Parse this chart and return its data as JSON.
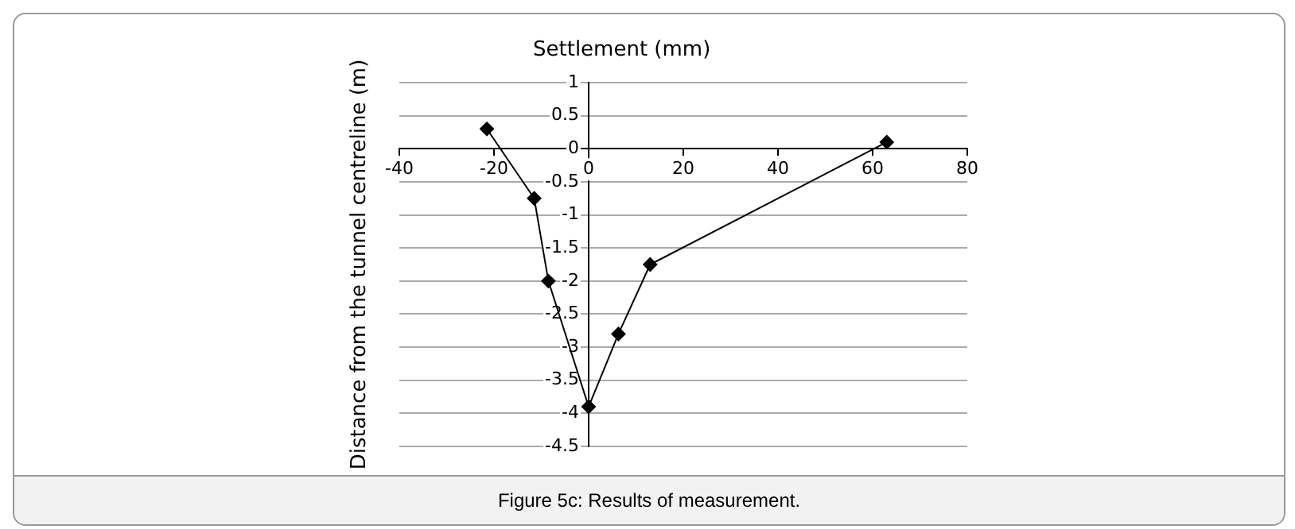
{
  "chart_data": {
    "type": "line",
    "xlabel": "Settlement (mm)",
    "ylabel": "Distance from the tunnel centreline (m)",
    "annotations": [
      "Figure 5c: Results of measurement."
    ],
    "series": [
      {
        "color": "#000000",
        "x": [
          -21.5,
          -11.5,
          -8.5,
          0,
          6.3,
          13,
          63
        ],
        "values": [
          0.3,
          -0.75,
          -2,
          -3.9,
          -2.8,
          -1.75,
          0.1
        ]
      }
    ],
    "xlim": [
      -40,
      80
    ],
    "xticks": [
      -40,
      -20,
      0,
      20,
      40,
      60,
      80
    ],
    "ylim": [
      -4.5,
      1
    ],
    "yticks": [
      -4.5,
      -4,
      -3.5,
      -3,
      -2.5,
      -2,
      -1.5,
      -1,
      -0.5,
      0,
      0.5,
      1
    ],
    "grid": "y",
    "marker": "diamond",
    "line_style": "solid",
    "legend": false
  }
}
